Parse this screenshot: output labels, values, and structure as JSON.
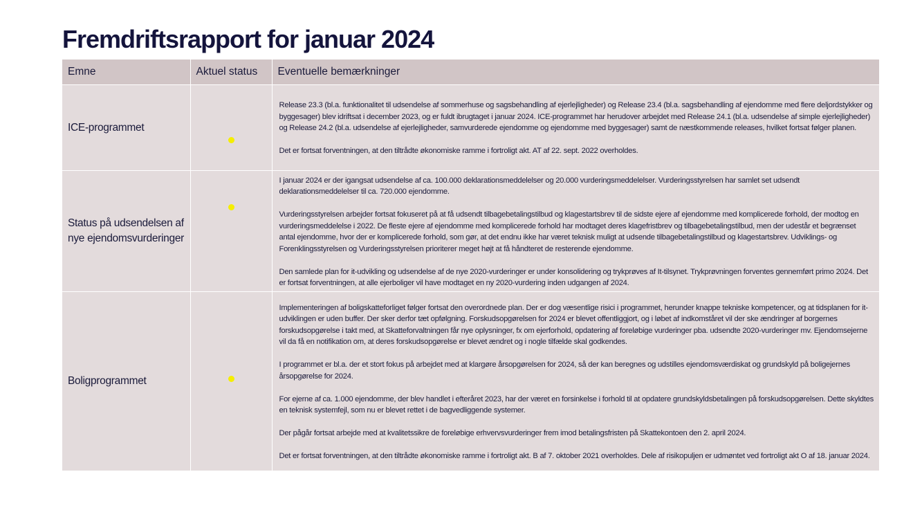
{
  "title": "Fremdriftsrapport for januar 2024",
  "table": {
    "headers": {
      "topic": "Emne",
      "status": "Aktuel status",
      "remarks": "Eventuelle bemærkninger"
    },
    "status_color": "#f5ee00",
    "rows": [
      {
        "topic": "ICE-programmet",
        "status": "yellow",
        "remarks": [
          "Release 23.3 (bl.a. funktionalitet til udsendelse af sommerhuse og sagsbehandling af ejerlejligheder) og Release 23.4 (bl.a. sagsbehandling af ejendomme med flere deljordstykker og byggesager) blev idriftsat i december 2023, og er fuldt ibrugtaget i januar 2024. ICE-programmet har herudover arbejdet med Release 24.1 (bl.a. udsendelse af simple ejerlejligheder) og Release 24.2 (bl.a. udsendelse af ejerlejligheder, samvurderede ejendomme og ejendomme med byggesager) samt de næstkommende releases, hvilket fortsat følger planen.",
          "Det er fortsat forventningen, at den tiltrådte økonomiske ramme i fortroligt akt. AT af 22. sept. 2022 overholdes."
        ]
      },
      {
        "topic": "Status på udsendelsen af nye ejendomsvurderinger",
        "status": "yellow",
        "remarks": [
          "I januar 2024 er der igangsat udsendelse af ca. 100.000 deklarationsmeddelelser og 20.000 vurderingsmeddelelser. Vurderingsstyrelsen har samlet set udsendt deklarationsmeddelelser til ca. 720.000 ejendomme.",
          "Vurderingsstyrelsen arbejder fortsat fokuseret på at få udsendt tilbagebetalingstilbud og klagestartsbrev til de sidste ejere af ejendomme med komplicerede forhold, der modtog en vurderingsmeddelelse i 2022. De fleste ejere af ejendomme med komplicerede forhold har modtaget deres klagefristbrev og tilbagebetalingstilbud, men der udestår et begrænset antal ejendomme, hvor der er komplicerede forhold, som gør, at det endnu ikke har været teknisk muligt at udsende tilbagebetalingstilbud og klagestartsbrev. Udviklings- og Forenklingsstyrelsen og Vurderingsstyrelsen prioriterer meget højt at få håndteret de resterende ejendomme.",
          "Den samlede plan for it-udvikling og udsendelse af de nye 2020-vurderinger er under konsolidering og trykprøves af It-tilsynet. Trykprøvningen forventes gennemført primo 2024. Det er fortsat forventningen, at alle ejerboliger vil have modtaget en ny 2020-vurdering inden udgangen af 2024."
        ]
      },
      {
        "topic": "Boligprogrammet",
        "status": "yellow",
        "remarks": [
          "Implementeringen af boligskatteforliget følger fortsat den overordnede plan. Der er dog væsentlige risici i programmet, herunder knappe tekniske kompetencer, og at tidsplanen for it-udviklingen er uden buffer. Der sker derfor tæt opfølgning. Forskudsopgørelsen for 2024 er blevet offentliggjort, og i løbet af indkomståret vil der ske ændringer af borgernes forskudsopgørelse i takt med, at Skatteforvaltningen får nye oplysninger, fx om ejerforhold, opdatering af foreløbige vurderinger pba. udsendte 2020-vurderinger mv. Ejendomsejerne vil da få en notifikation om, at deres forskudsopgørelse er blevet ændret og i nogle tilfælde skal godkendes.",
          "I programmet er bl.a. der et stort fokus på arbejdet med at klargøre årsopgørelsen for 2024, så der kan beregnes og udstilles ejendomsværdiskat og grundskyld på boligejernes årsopgørelse for 2024.",
          "For ejerne af ca. 1.000 ejendomme, der blev handlet i efteråret 2023, har der været en forsinkelse i forhold til at opdatere grundskyldsbetalingen på forskudsopgørelsen. Dette skyldtes en teknisk systemfejl, som nu er blevet rettet i de bagvedliggende systemer.",
          "Der pågår fortsat arbejde med at kvalitetssikre de foreløbige erhvervsvurderinger frem imod betalingsfristen på Skattekontoen den 2. april 2024.",
          "Det er fortsat forventningen, at den tiltrådte økonomiske ramme i fortroligt akt. B af 7. oktober 2021 overholdes. Dele af risikopuljen er udmøntet ved fortroligt akt O af 18. januar 2024."
        ]
      }
    ]
  }
}
